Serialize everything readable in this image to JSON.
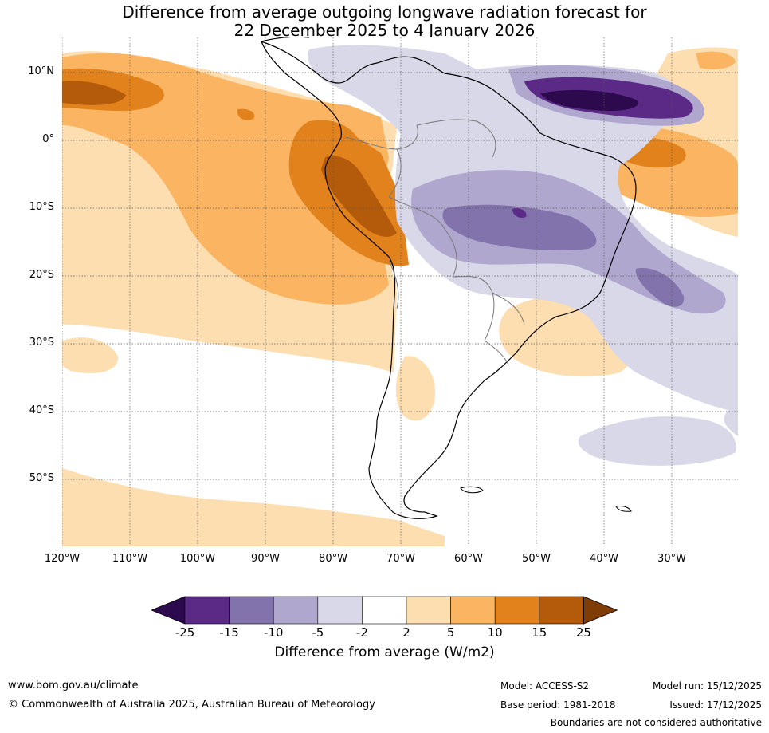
{
  "title": {
    "line1": "Difference from average outgoing longwave radiation forecast for",
    "line2": "22 December 2025 to 4 January 2026"
  },
  "map": {
    "lat_labels": [
      "10°N",
      "0°",
      "10°S",
      "20°S",
      "30°S",
      "40°S",
      "50°S"
    ],
    "lon_labels": [
      "120°W",
      "110°W",
      "100°W",
      "90°W",
      "80°W",
      "70°W",
      "60°W",
      "50°W",
      "40°W",
      "30°W"
    ]
  },
  "legend": {
    "title": "Difference from average (W/m2)",
    "ticks": [
      "-25",
      "-15",
      "-10",
      "-5",
      "-2",
      "2",
      "5",
      "10",
      "15",
      "25"
    ],
    "colors": {
      "below_min": "#2d0a4e",
      "bins": [
        "#5b2a86",
        "#8373ad",
        "#b0a7cf",
        "#d9d8e9",
        "#ffffff",
        "#fddeb0",
        "#fab462",
        "#e2821d",
        "#b45a0b"
      ],
      "above_max": "#7f3d05"
    }
  },
  "footer": {
    "website": "www.bom.gov.au/climate",
    "copyright": "© Commonwealth of Australia 2025, Australian Bureau of Meteorology",
    "model": "Model: ACCESS-S2",
    "base_period": "Base period: 1981-2018",
    "model_run": "Model run: 15/12/2025",
    "issued": "Issued: 17/12/2025",
    "disclaimer": "Boundaries are not considered authoritative"
  }
}
